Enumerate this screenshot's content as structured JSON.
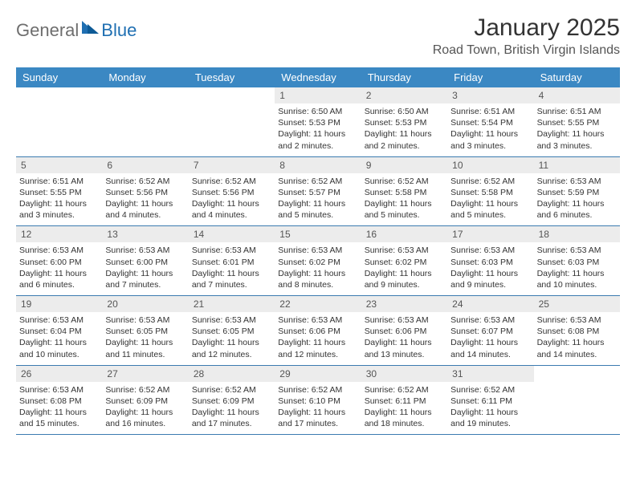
{
  "logo": {
    "text1": "General",
    "text2": "Blue"
  },
  "title": "January 2025",
  "location": "Road Town, British Virgin Islands",
  "colors": {
    "header_bg": "#3b88c3",
    "header_text": "#ffffff",
    "daynum_bg": "#ececec",
    "border": "#3b7bb0",
    "text": "#333333",
    "logo_gray": "#6e6e6e",
    "logo_blue": "#1f6fb2"
  },
  "layout": {
    "cols": 7,
    "rows": 5
  },
  "font": {
    "title_size": 30,
    "location_size": 16,
    "header_size": 13,
    "body_size": 10.5
  },
  "day_names": [
    "Sunday",
    "Monday",
    "Tuesday",
    "Wednesday",
    "Thursday",
    "Friday",
    "Saturday"
  ],
  "weeks": [
    [
      {
        "empty": true
      },
      {
        "empty": true
      },
      {
        "empty": true
      },
      {
        "n": "1",
        "sr": "Sunrise: 6:50 AM",
        "ss": "Sunset: 5:53 PM",
        "dl": "Daylight: 11 hours and 2 minutes."
      },
      {
        "n": "2",
        "sr": "Sunrise: 6:50 AM",
        "ss": "Sunset: 5:53 PM",
        "dl": "Daylight: 11 hours and 2 minutes."
      },
      {
        "n": "3",
        "sr": "Sunrise: 6:51 AM",
        "ss": "Sunset: 5:54 PM",
        "dl": "Daylight: 11 hours and 3 minutes."
      },
      {
        "n": "4",
        "sr": "Sunrise: 6:51 AM",
        "ss": "Sunset: 5:55 PM",
        "dl": "Daylight: 11 hours and 3 minutes."
      }
    ],
    [
      {
        "n": "5",
        "sr": "Sunrise: 6:51 AM",
        "ss": "Sunset: 5:55 PM",
        "dl": "Daylight: 11 hours and 3 minutes."
      },
      {
        "n": "6",
        "sr": "Sunrise: 6:52 AM",
        "ss": "Sunset: 5:56 PM",
        "dl": "Daylight: 11 hours and 4 minutes."
      },
      {
        "n": "7",
        "sr": "Sunrise: 6:52 AM",
        "ss": "Sunset: 5:56 PM",
        "dl": "Daylight: 11 hours and 4 minutes."
      },
      {
        "n": "8",
        "sr": "Sunrise: 6:52 AM",
        "ss": "Sunset: 5:57 PM",
        "dl": "Daylight: 11 hours and 5 minutes."
      },
      {
        "n": "9",
        "sr": "Sunrise: 6:52 AM",
        "ss": "Sunset: 5:58 PM",
        "dl": "Daylight: 11 hours and 5 minutes."
      },
      {
        "n": "10",
        "sr": "Sunrise: 6:52 AM",
        "ss": "Sunset: 5:58 PM",
        "dl": "Daylight: 11 hours and 5 minutes."
      },
      {
        "n": "11",
        "sr": "Sunrise: 6:53 AM",
        "ss": "Sunset: 5:59 PM",
        "dl": "Daylight: 11 hours and 6 minutes."
      }
    ],
    [
      {
        "n": "12",
        "sr": "Sunrise: 6:53 AM",
        "ss": "Sunset: 6:00 PM",
        "dl": "Daylight: 11 hours and 6 minutes."
      },
      {
        "n": "13",
        "sr": "Sunrise: 6:53 AM",
        "ss": "Sunset: 6:00 PM",
        "dl": "Daylight: 11 hours and 7 minutes."
      },
      {
        "n": "14",
        "sr": "Sunrise: 6:53 AM",
        "ss": "Sunset: 6:01 PM",
        "dl": "Daylight: 11 hours and 7 minutes."
      },
      {
        "n": "15",
        "sr": "Sunrise: 6:53 AM",
        "ss": "Sunset: 6:02 PM",
        "dl": "Daylight: 11 hours and 8 minutes."
      },
      {
        "n": "16",
        "sr": "Sunrise: 6:53 AM",
        "ss": "Sunset: 6:02 PM",
        "dl": "Daylight: 11 hours and 9 minutes."
      },
      {
        "n": "17",
        "sr": "Sunrise: 6:53 AM",
        "ss": "Sunset: 6:03 PM",
        "dl": "Daylight: 11 hours and 9 minutes."
      },
      {
        "n": "18",
        "sr": "Sunrise: 6:53 AM",
        "ss": "Sunset: 6:03 PM",
        "dl": "Daylight: 11 hours and 10 minutes."
      }
    ],
    [
      {
        "n": "19",
        "sr": "Sunrise: 6:53 AM",
        "ss": "Sunset: 6:04 PM",
        "dl": "Daylight: 11 hours and 10 minutes."
      },
      {
        "n": "20",
        "sr": "Sunrise: 6:53 AM",
        "ss": "Sunset: 6:05 PM",
        "dl": "Daylight: 11 hours and 11 minutes."
      },
      {
        "n": "21",
        "sr": "Sunrise: 6:53 AM",
        "ss": "Sunset: 6:05 PM",
        "dl": "Daylight: 11 hours and 12 minutes."
      },
      {
        "n": "22",
        "sr": "Sunrise: 6:53 AM",
        "ss": "Sunset: 6:06 PM",
        "dl": "Daylight: 11 hours and 12 minutes."
      },
      {
        "n": "23",
        "sr": "Sunrise: 6:53 AM",
        "ss": "Sunset: 6:06 PM",
        "dl": "Daylight: 11 hours and 13 minutes."
      },
      {
        "n": "24",
        "sr": "Sunrise: 6:53 AM",
        "ss": "Sunset: 6:07 PM",
        "dl": "Daylight: 11 hours and 14 minutes."
      },
      {
        "n": "25",
        "sr": "Sunrise: 6:53 AM",
        "ss": "Sunset: 6:08 PM",
        "dl": "Daylight: 11 hours and 14 minutes."
      }
    ],
    [
      {
        "n": "26",
        "sr": "Sunrise: 6:53 AM",
        "ss": "Sunset: 6:08 PM",
        "dl": "Daylight: 11 hours and 15 minutes."
      },
      {
        "n": "27",
        "sr": "Sunrise: 6:52 AM",
        "ss": "Sunset: 6:09 PM",
        "dl": "Daylight: 11 hours and 16 minutes."
      },
      {
        "n": "28",
        "sr": "Sunrise: 6:52 AM",
        "ss": "Sunset: 6:09 PM",
        "dl": "Daylight: 11 hours and 17 minutes."
      },
      {
        "n": "29",
        "sr": "Sunrise: 6:52 AM",
        "ss": "Sunset: 6:10 PM",
        "dl": "Daylight: 11 hours and 17 minutes."
      },
      {
        "n": "30",
        "sr": "Sunrise: 6:52 AM",
        "ss": "Sunset: 6:11 PM",
        "dl": "Daylight: 11 hours and 18 minutes."
      },
      {
        "n": "31",
        "sr": "Sunrise: 6:52 AM",
        "ss": "Sunset: 6:11 PM",
        "dl": "Daylight: 11 hours and 19 minutes."
      },
      {
        "empty": true
      }
    ]
  ]
}
